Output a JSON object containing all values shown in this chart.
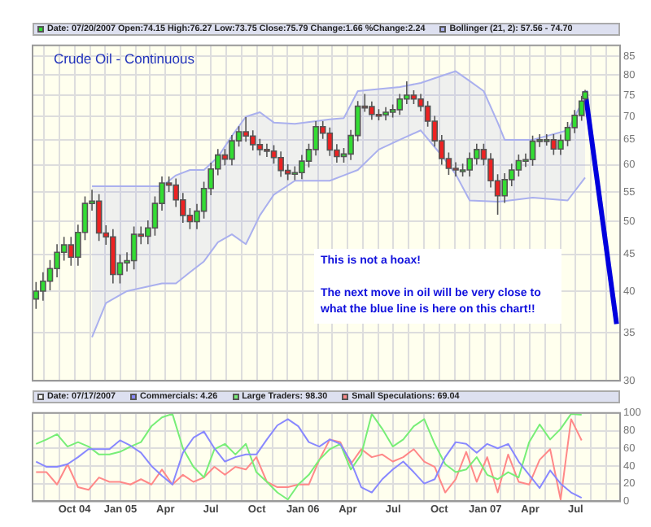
{
  "chart_data": [
    {
      "type": "candlestick",
      "title": "Crude Oil - Continuous",
      "legend": "top",
      "annotations": [
        "Date: 07/20/2007 Open:74.15 High:76.27 Low:73.75 Close:75.79 Change:1.66 %Change:2.24",
        "This is not a hoax!",
        "The next move in oil will be very close to what the blue line is here on this chart!!"
      ],
      "x": [
        "2004-07-16",
        "2004-07-30",
        "2004-08-13",
        "2004-08-27",
        "2004-09-10",
        "2004-09-24",
        "2004-10-08",
        "2004-10-22",
        "2004-11-05",
        "2004-11-19",
        "2004-12-03",
        "2004-12-17",
        "2004-12-31",
        "2005-01-14",
        "2005-01-28",
        "2005-02-11",
        "2005-02-25",
        "2005-03-11",
        "2005-03-25",
        "2005-04-08",
        "2005-04-22",
        "2005-05-06",
        "2005-05-20",
        "2005-06-03",
        "2005-06-17",
        "2005-07-01",
        "2005-07-15",
        "2005-07-29",
        "2005-08-12",
        "2005-08-26",
        "2005-09-09",
        "2005-09-23",
        "2005-10-07",
        "2005-10-21",
        "2005-11-04",
        "2005-11-18",
        "2005-12-02",
        "2005-12-16",
        "2005-12-30",
        "2006-01-13",
        "2006-01-27",
        "2006-02-10",
        "2006-02-24",
        "2006-03-10",
        "2006-03-24",
        "2006-04-07",
        "2006-04-21",
        "2006-05-05",
        "2006-05-19",
        "2006-06-02",
        "2006-06-16",
        "2006-06-30",
        "2006-07-14",
        "2006-07-28",
        "2006-08-11",
        "2006-08-25",
        "2006-09-08",
        "2006-09-22",
        "2006-10-06",
        "2006-10-20",
        "2006-11-03",
        "2006-11-17",
        "2006-12-01",
        "2006-12-15",
        "2006-12-29",
        "2007-01-12",
        "2007-01-26",
        "2007-02-09",
        "2007-02-23",
        "2007-03-09",
        "2007-03-23",
        "2007-04-06",
        "2007-04-20",
        "2007-05-04",
        "2007-05-18",
        "2007-06-01",
        "2007-06-15",
        "2007-06-29",
        "2007-07-13",
        "2007-07-20"
      ],
      "ohlc": [
        [
          39,
          41.2,
          37.8,
          40
        ],
        [
          40,
          42.5,
          38.8,
          41.3
        ],
        [
          41.3,
          44.2,
          40.1,
          43
        ],
        [
          43,
          46.5,
          41.8,
          45.3
        ],
        [
          45.3,
          47.6,
          44.1,
          46.4
        ],
        [
          46.4,
          47.6,
          43.4,
          44.6
        ],
        [
          44.6,
          49.5,
          43.4,
          48.3
        ],
        [
          48.3,
          54.2,
          47.1,
          53
        ],
        [
          53,
          55.4,
          51.8,
          53.4
        ],
        [
          53.4,
          54.6,
          47,
          48.2
        ],
        [
          48.2,
          49.4,
          46.4,
          47.6
        ],
        [
          47.6,
          48.8,
          41,
          42.2
        ],
        [
          42.2,
          45,
          41,
          43.8
        ],
        [
          43.8,
          45.3,
          42.6,
          44.1
        ],
        [
          44.1,
          49.2,
          42.9,
          48
        ],
        [
          48,
          49.2,
          46.5,
          47.7
        ],
        [
          47.7,
          50.2,
          46.5,
          49
        ],
        [
          49,
          54.2,
          47.8,
          53
        ],
        [
          53,
          57.8,
          51.8,
          56.6
        ],
        [
          56.6,
          57.8,
          55,
          56.2
        ],
        [
          56.2,
          57.4,
          52.4,
          53.6
        ],
        [
          53.6,
          54.8,
          49.8,
          51
        ],
        [
          51,
          52.2,
          48.8,
          50
        ],
        [
          50,
          52.9,
          48.8,
          51.7
        ],
        [
          51.7,
          56.8,
          50.5,
          55.6
        ],
        [
          55.6,
          60.4,
          54.4,
          59.2
        ],
        [
          59.2,
          63.1,
          58,
          61.9
        ],
        [
          61.9,
          63.1,
          59.9,
          61.1
        ],
        [
          61.1,
          66,
          59.9,
          64.8
        ],
        [
          64.8,
          67.9,
          63.6,
          66.7
        ],
        [
          66.7,
          69.9,
          64.6,
          65.8
        ],
        [
          65.8,
          67,
          62.8,
          64
        ],
        [
          64,
          65.2,
          61.8,
          63
        ],
        [
          63,
          64.2,
          61.5,
          62.7
        ],
        [
          62.7,
          63.9,
          60.2,
          61.4
        ],
        [
          61.4,
          62.6,
          57.7,
          58.9
        ],
        [
          58.9,
          60.1,
          57.1,
          58.3
        ],
        [
          58.3,
          59.7,
          57.1,
          58.5
        ],
        [
          58.5,
          61.9,
          57.3,
          60.7
        ],
        [
          60.7,
          64.2,
          59.5,
          63
        ],
        [
          63,
          69,
          61.8,
          67.8
        ],
        [
          67.8,
          69,
          65.2,
          66.4
        ],
        [
          66.4,
          67.6,
          61.7,
          62.9
        ],
        [
          62.9,
          64.1,
          60.4,
          61.6
        ],
        [
          61.6,
          63.3,
          60.4,
          62.1
        ],
        [
          62.1,
          67.1,
          60.9,
          65.9
        ],
        [
          65.9,
          73.6,
          64.7,
          72.4
        ],
        [
          72.4,
          75.3,
          71.1,
          72.3
        ],
        [
          72.3,
          73.5,
          69.3,
          70.5
        ],
        [
          70.5,
          71.7,
          69.2,
          70.4
        ],
        [
          70.4,
          72.2,
          69.2,
          71
        ],
        [
          71,
          72.8,
          69.8,
          71.6
        ],
        [
          71.6,
          75.3,
          70.4,
          74.1
        ],
        [
          74.1,
          78.4,
          72.9,
          75
        ],
        [
          75,
          76.2,
          72.9,
          74.1
        ],
        [
          74.1,
          75.3,
          71.2,
          72.4
        ],
        [
          72.4,
          73.6,
          67.8,
          69
        ],
        [
          69,
          70.2,
          63.6,
          64.8
        ],
        [
          64.8,
          66,
          60,
          61.2
        ],
        [
          61.2,
          62.4,
          58.1,
          59.3
        ],
        [
          59.3,
          60.5,
          57.8,
          59
        ],
        [
          59,
          60.2,
          57.8,
          59
        ],
        [
          59,
          62.4,
          57.8,
          61.2
        ],
        [
          61.2,
          64.2,
          60,
          63
        ],
        [
          63,
          64.2,
          59.9,
          61.1
        ],
        [
          61.1,
          62.3,
          55.8,
          57
        ],
        [
          57,
          58.2,
          51.1,
          54.3
        ],
        [
          54.3,
          58.4,
          53.1,
          57.2
        ],
        [
          57.2,
          60.2,
          56,
          59
        ],
        [
          59,
          62,
          57.8,
          60.8
        ],
        [
          60.8,
          62.2,
          59.6,
          61
        ],
        [
          61,
          65.9,
          59.8,
          64.7
        ],
        [
          64.7,
          66.2,
          63.5,
          65
        ],
        [
          65,
          66.2,
          63.8,
          65
        ],
        [
          65,
          66.2,
          61.9,
          63.1
        ],
        [
          63.1,
          66.1,
          61.9,
          64.9
        ],
        [
          64.9,
          68.8,
          63.7,
          67.6
        ],
        [
          67.6,
          71.5,
          66.4,
          70.3
        ],
        [
          70.3,
          74.8,
          69.1,
          73.6
        ],
        [
          74.15,
          76.27,
          73.75,
          75.79
        ]
      ],
      "series": [
        {
          "type": "line",
          "name": "Bollinger (21, 2): 57.56 - 74.70",
          "color": "#aab0ee",
          "x": [
            "2004-11-05",
            "2004-12-03",
            "2005-01-14",
            "2005-03-25",
            "2005-04-22",
            "2005-05-20",
            "2005-06-17",
            "2005-07-15",
            "2005-08-12",
            "2005-09-09",
            "2005-10-07",
            "2005-11-04",
            "2005-12-16",
            "2006-01-27",
            "2006-02-24",
            "2006-03-24",
            "2006-04-21",
            "2006-06-02",
            "2006-07-14",
            "2006-08-25",
            "2006-10-06",
            "2006-11-03",
            "2006-12-01",
            "2006-12-29",
            "2007-01-26",
            "2007-02-09",
            "2007-04-06",
            "2007-06-15",
            "2007-07-20"
          ],
          "values": [
            56,
            56,
            56,
            56,
            58,
            59,
            59,
            61.5,
            65.8,
            70,
            71,
            68.7,
            68.4,
            69,
            69.4,
            69.7,
            76,
            76.5,
            77,
            78,
            79.8,
            81,
            78.5,
            76,
            68.7,
            65,
            65,
            67,
            74.7
          ],
          "upper": [
            56,
            56,
            56,
            56,
            58,
            59,
            59,
            61.5,
            65.8,
            70,
            71,
            68.7,
            68.4,
            69,
            69.4,
            69.7,
            76,
            76.5,
            77,
            78,
            79.8,
            81,
            78.5,
            76,
            68.7,
            65,
            65,
            67,
            74.7
          ],
          "lower": [
            34.5,
            38.5,
            40,
            41,
            41,
            42.5,
            44,
            46.8,
            48,
            46.5,
            51,
            54.5,
            57,
            57,
            57,
            58,
            59,
            63,
            65,
            67,
            61.8,
            58.2,
            53.5,
            53.4,
            53.3,
            53.4,
            54,
            53.5,
            57.56
          ]
        },
        {
          "type": "line",
          "color": "#aab0ee",
          "x": [
            "2004-11-05",
            "2004-12-03",
            "2005-01-14",
            "2005-03-25",
            "2005-04-22",
            "2005-05-20",
            "2005-06-17",
            "2005-07-15",
            "2005-08-12",
            "2005-09-09",
            "2005-10-07",
            "2005-11-04",
            "2005-12-16",
            "2006-01-27",
            "2006-02-24",
            "2006-03-24",
            "2006-04-21",
            "2006-06-02",
            "2006-07-14",
            "2006-08-25",
            "2006-10-06",
            "2006-11-03",
            "2006-12-01",
            "2006-12-29",
            "2007-01-26",
            "2007-02-09",
            "2007-04-06",
            "2007-06-15",
            "2007-07-20"
          ],
          "values": [
            34.5,
            38.5,
            40,
            41,
            41,
            42.5,
            44,
            46.8,
            48,
            46.5,
            51,
            54.5,
            57,
            57,
            57,
            58,
            59,
            63,
            65,
            67,
            61.8,
            58.2,
            53.5,
            53.4,
            53.3,
            53.4,
            54,
            53.5,
            57.56
          ]
        },
        {
          "type": "line",
          "color": "#0000dd",
          "x": [
            "2007-07-20",
            "2007-09-21"
          ],
          "values": [
            76,
            36
          ]
        }
      ],
      "xlim": [
        "2004-07-09",
        "2007-09-28"
      ],
      "xticks": [
        {
          "value": "2004-08",
          "label": null
        },
        {
          "value": "2004-09",
          "label": null
        },
        {
          "value": "2004-10",
          "label": null
        },
        {
          "value": "2004-11",
          "label": null
        },
        {
          "value": "2004-12",
          "label": null
        },
        {
          "value": "2005-01",
          "label": null
        },
        {
          "value": "2005-02",
          "label": null
        },
        {
          "value": "2005-03",
          "label": null
        },
        {
          "value": "2005-04",
          "label": null
        },
        {
          "value": "2005-05",
          "label": null
        },
        {
          "value": "2005-06",
          "label": null
        },
        {
          "value": "2005-07",
          "label": null
        },
        {
          "value": "2005-08",
          "label": null
        },
        {
          "value": "2005-09",
          "label": null
        },
        {
          "value": "2005-10",
          "label": null
        },
        {
          "value": "2005-11",
          "label": null
        },
        {
          "value": "2005-12",
          "label": null
        },
        {
          "value": "2006-01",
          "label": null
        },
        {
          "value": "2006-02",
          "label": null
        },
        {
          "value": "2006-03",
          "label": null
        },
        {
          "value": "2006-04",
          "label": null
        },
        {
          "value": "2006-05",
          "label": null
        },
        {
          "value": "2006-06",
          "label": null
        },
        {
          "value": "2006-07",
          "label": null
        },
        {
          "value": "2006-08",
          "label": null
        },
        {
          "value": "2006-09",
          "label": null
        },
        {
          "value": "2006-10",
          "label": null
        },
        {
          "value": "2006-11",
          "label": null
        },
        {
          "value": "2006-12",
          "label": null
        },
        {
          "value": "2007-01",
          "label": null
        },
        {
          "value": "2007-02",
          "label": null
        },
        {
          "value": "2007-03",
          "label": null
        },
        {
          "value": "2007-04",
          "label": null
        },
        {
          "value": "2007-05",
          "label": null
        },
        {
          "value": "2007-06",
          "label": null
        },
        {
          "value": "2007-07",
          "label": null
        },
        {
          "value": "2007-08",
          "label": null
        },
        {
          "value": "2007-09",
          "label": null
        }
      ],
      "ylim": [
        30,
        88
      ],
      "yticks": [
        30,
        35,
        40,
        45,
        50,
        55,
        60,
        65,
        70,
        75,
        80,
        85
      ],
      "log": true,
      "grid": true,
      "tick_labels": "y"
    },
    {
      "type": "line",
      "legend": "top",
      "annotations": [
        "Date: 07/17/2007"
      ],
      "x": [
        "2004-07-16",
        "2004-08-06",
        "2004-08-27",
        "2004-09-17",
        "2004-10-08",
        "2004-10-29",
        "2004-11-19",
        "2004-12-10",
        "2004-12-31",
        "2005-01-21",
        "2005-02-11",
        "2005-03-04",
        "2005-03-25",
        "2005-04-15",
        "2005-05-06",
        "2005-05-27",
        "2005-06-17",
        "2005-07-08",
        "2005-07-29",
        "2005-08-19",
        "2005-09-09",
        "2005-09-30",
        "2005-10-21",
        "2005-11-11",
        "2005-12-02",
        "2005-12-23",
        "2006-01-13",
        "2006-02-03",
        "2006-02-24",
        "2006-03-17",
        "2006-04-07",
        "2006-04-28",
        "2006-05-19",
        "2006-06-09",
        "2006-06-30",
        "2006-07-21",
        "2006-08-11",
        "2006-09-01",
        "2006-09-22",
        "2006-10-13",
        "2006-11-03",
        "2006-11-24",
        "2006-12-15",
        "2007-01-05",
        "2007-01-26",
        "2007-02-16",
        "2007-03-09",
        "2007-03-30",
        "2007-04-20",
        "2007-05-11",
        "2007-06-01",
        "2007-06-22",
        "2007-07-13"
      ],
      "series": [
        {
          "name": "Commercials: 4.26",
          "color": "#8888ff",
          "values": [
            45,
            39,
            39,
            42,
            50,
            59,
            59,
            59,
            69,
            63,
            55,
            40,
            29,
            19,
            55,
            72,
            79,
            60,
            45,
            50,
            53,
            53,
            70,
            86,
            93,
            85,
            67,
            62,
            70,
            65,
            45,
            16,
            10,
            25,
            36,
            45,
            33,
            20,
            25,
            50,
            67,
            65,
            55,
            65,
            60,
            65,
            45,
            30,
            15,
            35,
            20,
            10,
            4
          ]
        },
        {
          "name": "Large Traders: 98.30",
          "color": "#77ee77",
          "values": [
            65,
            70,
            76,
            62,
            67,
            62,
            53,
            53,
            56,
            62,
            67,
            85,
            95,
            99,
            60,
            39,
            27,
            59,
            65,
            53,
            65,
            33,
            22,
            10,
            2,
            19,
            30,
            47,
            59,
            65,
            36,
            53,
            99,
            82,
            62,
            70,
            85,
            93,
            65,
            42,
            33,
            36,
            50,
            30,
            25,
            33,
            27,
            67,
            87,
            70,
            82,
            99,
            98
          ]
        },
        {
          "name": "Small Speculations: 69.04",
          "color": "#ff8888",
          "values": [
            33,
            33,
            19,
            42,
            16,
            13,
            27,
            22,
            22,
            19,
            25,
            19,
            36,
            19,
            30,
            22,
            27,
            39,
            30,
            39,
            36,
            50,
            22,
            16,
            16,
            19,
            19,
            47,
            70,
            67,
            42,
            59,
            50,
            53,
            45,
            50,
            59,
            45,
            39,
            10,
            25,
            56,
            22,
            50,
            10,
            53,
            22,
            19,
            47,
            59,
            2,
            93,
            69
          ]
        }
      ],
      "xlim": [
        "2004-07-09",
        "2007-09-28"
      ],
      "xticks": [
        {
          "value": "2004-08",
          "label": null
        },
        {
          "value": "2004-09",
          "label": null
        },
        {
          "value": "2004-10",
          "label": "Oct 04"
        },
        {
          "value": "2004-11",
          "label": null
        },
        {
          "value": "2004-12",
          "label": null
        },
        {
          "value": "2005-01",
          "label": "Jan 05"
        },
        {
          "value": "2005-02",
          "label": null
        },
        {
          "value": "2005-03",
          "label": null
        },
        {
          "value": "2005-04",
          "label": "Apr"
        },
        {
          "value": "2005-05",
          "label": null
        },
        {
          "value": "2005-06",
          "label": null
        },
        {
          "value": "2005-07",
          "label": "Jul"
        },
        {
          "value": "2005-08",
          "label": null
        },
        {
          "value": "2005-09",
          "label": null
        },
        {
          "value": "2005-10",
          "label": "Oct"
        },
        {
          "value": "2005-11",
          "label": null
        },
        {
          "value": "2005-12",
          "label": null
        },
        {
          "value": "2006-01",
          "label": "Jan 06"
        },
        {
          "value": "2006-02",
          "label": null
        },
        {
          "value": "2006-03",
          "label": null
        },
        {
          "value": "2006-04",
          "label": "Apr"
        },
        {
          "value": "2006-05",
          "label": null
        },
        {
          "value": "2006-06",
          "label": null
        },
        {
          "value": "2006-07",
          "label": "Jul"
        },
        {
          "value": "2006-08",
          "label": null
        },
        {
          "value": "2006-09",
          "label": null
        },
        {
          "value": "2006-10",
          "label": "Oct"
        },
        {
          "value": "2006-11",
          "label": null
        },
        {
          "value": "2006-12",
          "label": null
        },
        {
          "value": "2007-01",
          "label": "Jan 07"
        },
        {
          "value": "2007-02",
          "label": null
        },
        {
          "value": "2007-03",
          "label": null
        },
        {
          "value": "2007-04",
          "label": "Apr"
        },
        {
          "value": "2007-05",
          "label": null
        },
        {
          "value": "2007-06",
          "label": null
        },
        {
          "value": "2007-07",
          "label": "Jul"
        },
        {
          "value": "2007-08",
          "label": null
        },
        {
          "value": "2007-09",
          "label": null
        }
      ],
      "ylim": [
        0,
        100
      ],
      "yticks": [
        0,
        20,
        40,
        60,
        80,
        100
      ],
      "grid": true
    }
  ]
}
